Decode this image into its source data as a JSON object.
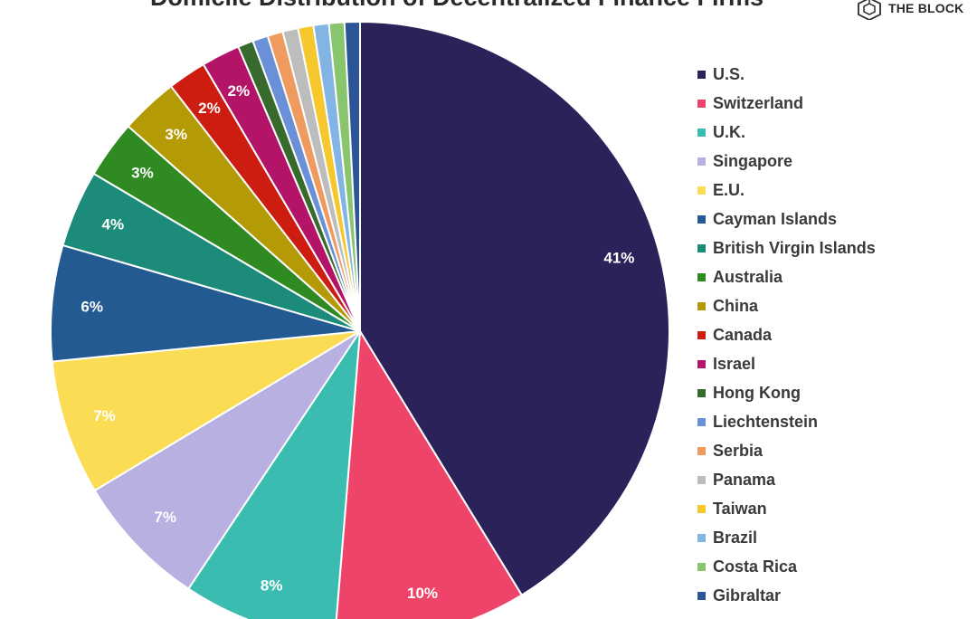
{
  "chart_data": {
    "type": "pie",
    "title": "Domicile Distribution of Decentralized Finance Firms",
    "legend_position": "right",
    "slices": [
      {
        "label": "U.S.",
        "value": 41,
        "display": "41%",
        "color": "#2a2259"
      },
      {
        "label": "Switzerland",
        "value": 10,
        "display": "10%",
        "color": "#ef446a"
      },
      {
        "label": "U.K.",
        "value": 8,
        "display": "8%",
        "color": "#3bbcb0"
      },
      {
        "label": "Singapore",
        "value": 7,
        "display": "7%",
        "color": "#b7b0e0"
      },
      {
        "label": "E.U.",
        "value": 7,
        "display": "7%",
        "color": "#fbdc55"
      },
      {
        "label": "Cayman Islands",
        "value": 6,
        "display": "6%",
        "color": "#225a91"
      },
      {
        "label": "British Virgin Islands",
        "value": 4,
        "display": "4%",
        "color": "#1c8b79"
      },
      {
        "label": "Australia",
        "value": 3,
        "display": "3%",
        "color": "#2f8a22"
      },
      {
        "label": "China",
        "value": 3,
        "display": "3%",
        "color": "#b49b06"
      },
      {
        "label": "Canada",
        "value": 2,
        "display": "2%",
        "color": "#cd1c10"
      },
      {
        "label": "Israel",
        "value": 2,
        "display": "2%",
        "color": "#b31468"
      },
      {
        "label": "Hong Kong",
        "value": 0.8,
        "display": "",
        "color": "#386a2d"
      },
      {
        "label": "Liechtenstein",
        "value": 0.8,
        "display": "",
        "color": "#6a90d8"
      },
      {
        "label": "Serbia",
        "value": 0.8,
        "display": "",
        "color": "#ef9a5e"
      },
      {
        "label": "Panama",
        "value": 0.8,
        "display": "",
        "color": "#bdbdbd"
      },
      {
        "label": "Taiwan",
        "value": 0.8,
        "display": "",
        "color": "#f6c82e"
      },
      {
        "label": "Brazil",
        "value": 0.8,
        "display": "",
        "color": "#82b5e3"
      },
      {
        "label": "Costa Rica",
        "value": 0.8,
        "display": "",
        "color": "#88c56c"
      },
      {
        "label": "Gibraltar",
        "value": 0.8,
        "display": "",
        "color": "#2b5596"
      }
    ]
  },
  "logo": {
    "text": "THE BLOCK"
  }
}
